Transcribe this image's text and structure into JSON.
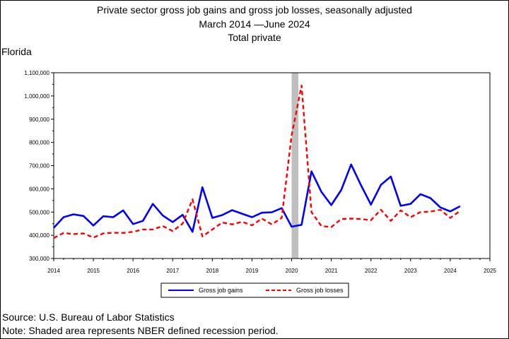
{
  "header": {
    "title_line1": "Private sector gross job gains and gross job losses, seasonally adjusted",
    "title_line2": "March 2014  —June 2024",
    "title_line3": "Total private",
    "state": "Florida"
  },
  "footer": {
    "source": "Source: U.S. Bureau of Labor Statistics",
    "note": "Note: Shaded area represents NBER defined recession period."
  },
  "chart_data": {
    "type": "line",
    "xlabel": "",
    "ylabel": "",
    "xlim": [
      2014,
      2025
    ],
    "ylim": [
      300000,
      1100000
    ],
    "x_ticks": [
      "2014",
      "2015",
      "2016",
      "2017",
      "2018",
      "2019",
      "2020",
      "2021",
      "2022",
      "2023",
      "2024",
      "2025"
    ],
    "y_ticks": [
      "300,000",
      "400,000",
      "500,000",
      "600,000",
      "700,000",
      "800,000",
      "900,000",
      "1,000,000",
      "1,100,000"
    ],
    "grid": false,
    "legend_position": "bottom",
    "recession": {
      "start": 2020.0,
      "end": 2020.17,
      "color": "#bfbfbf"
    },
    "x": [
      2014.0,
      2014.25,
      2014.5,
      2014.75,
      2015.0,
      2015.25,
      2015.5,
      2015.75,
      2016.0,
      2016.25,
      2016.5,
      2016.75,
      2017.0,
      2017.25,
      2017.5,
      2017.75,
      2018.0,
      2018.25,
      2018.5,
      2018.75,
      2019.0,
      2019.25,
      2019.5,
      2019.75,
      2020.0,
      2020.25,
      2020.5,
      2020.75,
      2021.0,
      2021.25,
      2021.5,
      2021.75,
      2022.0,
      2022.25,
      2022.5,
      2022.75,
      2023.0,
      2023.25,
      2023.5,
      2023.75,
      2024.0,
      2024.25
    ],
    "series": [
      {
        "name": "Gross job gains",
        "color": "#0000ff",
        "dash": "solid",
        "values": [
          432000,
          478000,
          490000,
          483000,
          442000,
          482000,
          478000,
          507000,
          448000,
          462000,
          535000,
          485000,
          457000,
          488000,
          415000,
          607000,
          475000,
          487000,
          508000,
          493000,
          478000,
          497000,
          499000,
          517000,
          437000,
          445000,
          675000,
          587000,
          530000,
          595000,
          705000,
          615000,
          532000,
          617000,
          653000,
          527000,
          535000,
          577000,
          560000,
          520000,
          503000,
          525000
        ]
      },
      {
        "name": "Gross job losses",
        "color": "#ff0000",
        "dash": "dashed",
        "values": [
          388000,
          410000,
          405000,
          408000,
          390000,
          408000,
          411000,
          410000,
          415000,
          425000,
          425000,
          440000,
          418000,
          450000,
          555000,
          395000,
          425000,
          455000,
          447000,
          458000,
          443000,
          472000,
          447000,
          475000,
          830000,
          1045000,
          500000,
          440000,
          435000,
          470000,
          472000,
          470000,
          465000,
          510000,
          462000,
          507000,
          478000,
          500000,
          502000,
          510000,
          475000,
          505000
        ]
      }
    ]
  }
}
